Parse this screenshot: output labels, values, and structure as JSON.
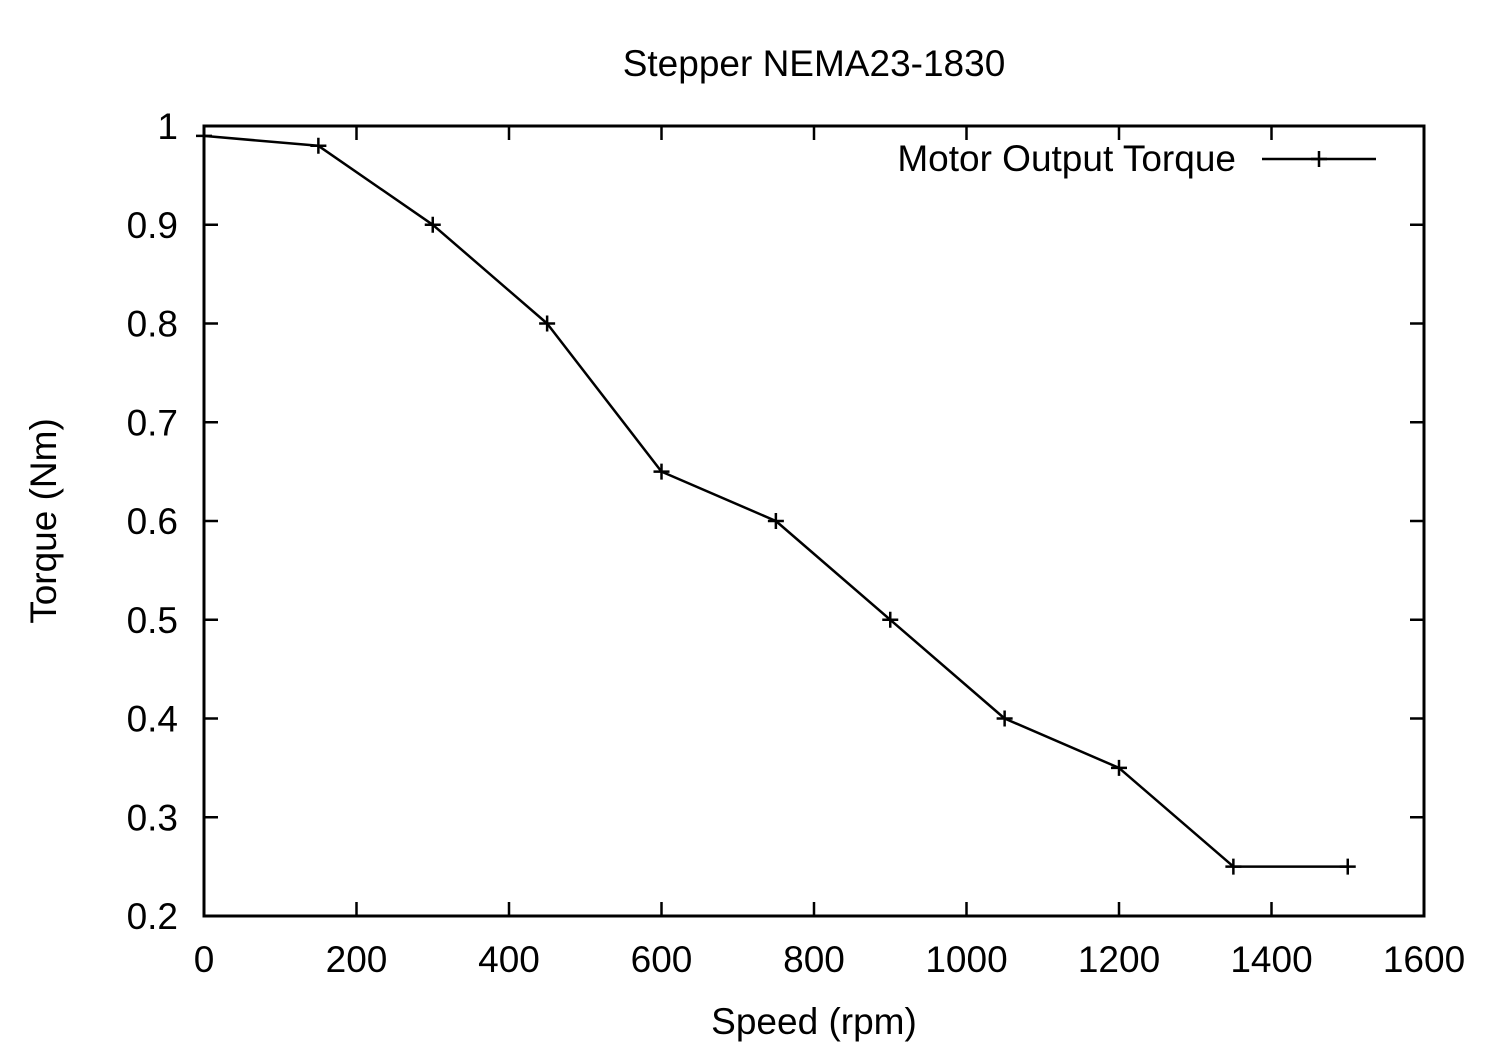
{
  "chart_data": {
    "type": "line",
    "title": "Stepper NEMA23-1830",
    "xlabel": "Speed (rpm)",
    "ylabel": "Torque (Nm)",
    "xlim": [
      0,
      1600
    ],
    "ylim": [
      0.2,
      1.0
    ],
    "xticks": [
      0,
      200,
      400,
      600,
      800,
      1000,
      1200,
      1400,
      1600
    ],
    "xtick_labels": [
      "0",
      "200",
      "400",
      "600",
      "800",
      "1000",
      "1200",
      "1400",
      "1600"
    ],
    "yticks": [
      0.2,
      0.3,
      0.4,
      0.5,
      0.6,
      0.7,
      0.8,
      0.9,
      1.0
    ],
    "ytick_labels": [
      "0.2",
      "0.3",
      "0.4",
      "0.5",
      "0.6",
      "0.7",
      "0.8",
      "0.9",
      "1"
    ],
    "grid": false,
    "legend_position": "top-right",
    "series": [
      {
        "name": "Motor Output Torque",
        "color": "#000000",
        "marker": "plus",
        "x": [
          0,
          150,
          300,
          450,
          600,
          750,
          900,
          1050,
          1200,
          1350,
          1500
        ],
        "y": [
          0.99,
          0.98,
          0.9,
          0.8,
          0.65,
          0.6,
          0.5,
          0.4,
          0.35,
          0.25,
          0.25
        ]
      }
    ]
  }
}
